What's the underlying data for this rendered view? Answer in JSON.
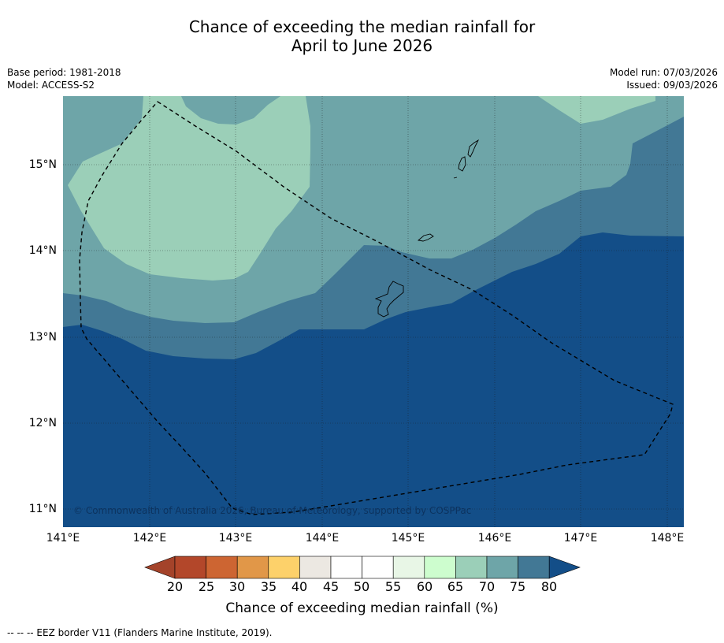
{
  "title": {
    "line1": "Chance of exceeding the median rainfall for",
    "line2": "April to June 2026"
  },
  "meta": {
    "base_period": "Base period: 1981-2018",
    "model": "Model: ACCESS-S2",
    "model_run": "Model run: 07/03/2026",
    "issued": "Issued: 09/03/2026"
  },
  "map": {
    "copyright": "© Commonwealth of Australia 2026, Bureau of Meteorology, supported by COSPPac",
    "lon_labels": [
      "141°E",
      "142°E",
      "143°E",
      "144°E",
      "145°E",
      "146°E",
      "147°E",
      "148°E"
    ],
    "lat_labels": [
      "15°N",
      "14°N",
      "13°N",
      "12°N",
      "11°N"
    ],
    "region_colors": {
      "p65_70": "#9bcfb8",
      "p70_75": "#6ea5a8",
      "p75_80": "#427895",
      "p80_plus": "#134e88"
    }
  },
  "colorbar": {
    "ticks": [
      "20",
      "25",
      "30",
      "35",
      "40",
      "45",
      "50",
      "55",
      "60",
      "65",
      "70",
      "75",
      "80"
    ],
    "colors": [
      "#b3472a",
      "#cd6532",
      "#e19748",
      "#fdd16a",
      "#ece8e2",
      "#ffffff",
      "#ffffff",
      "#e8f6e6",
      "#cdfdce",
      "#9bcfb8",
      "#6ea5a8",
      "#427895"
    ],
    "under_color": "#a4432a",
    "over_color": "#134e88",
    "title": "Chance of exceeding median rainfall (%)"
  },
  "legend": {
    "eez": "--  --  -- EEZ border V11 (Flanders Marine Institute, 2019)."
  }
}
